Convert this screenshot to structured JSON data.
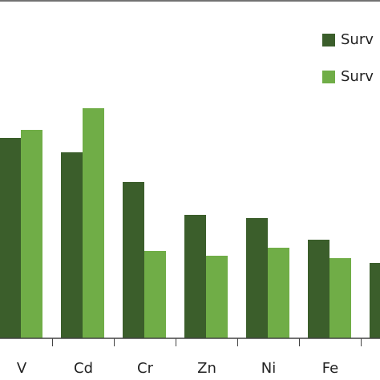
{
  "chart_data": {
    "type": "bar",
    "categories": [
      "V",
      "Cd",
      "Cr",
      "Zn",
      "Ni",
      "Fe",
      null
    ],
    "series": [
      {
        "name": "Surv",
        "color": "#3b5e2b",
        "values": [
          250,
          232,
          195,
          154,
          150,
          123,
          94
        ]
      },
      {
        "name": "Surv",
        "color": "#70ad47",
        "values": [
          260,
          287,
          109,
          103,
          113,
          100,
          null
        ]
      }
    ],
    "ylim": [
      0,
      422
    ],
    "legend": "top-right"
  }
}
